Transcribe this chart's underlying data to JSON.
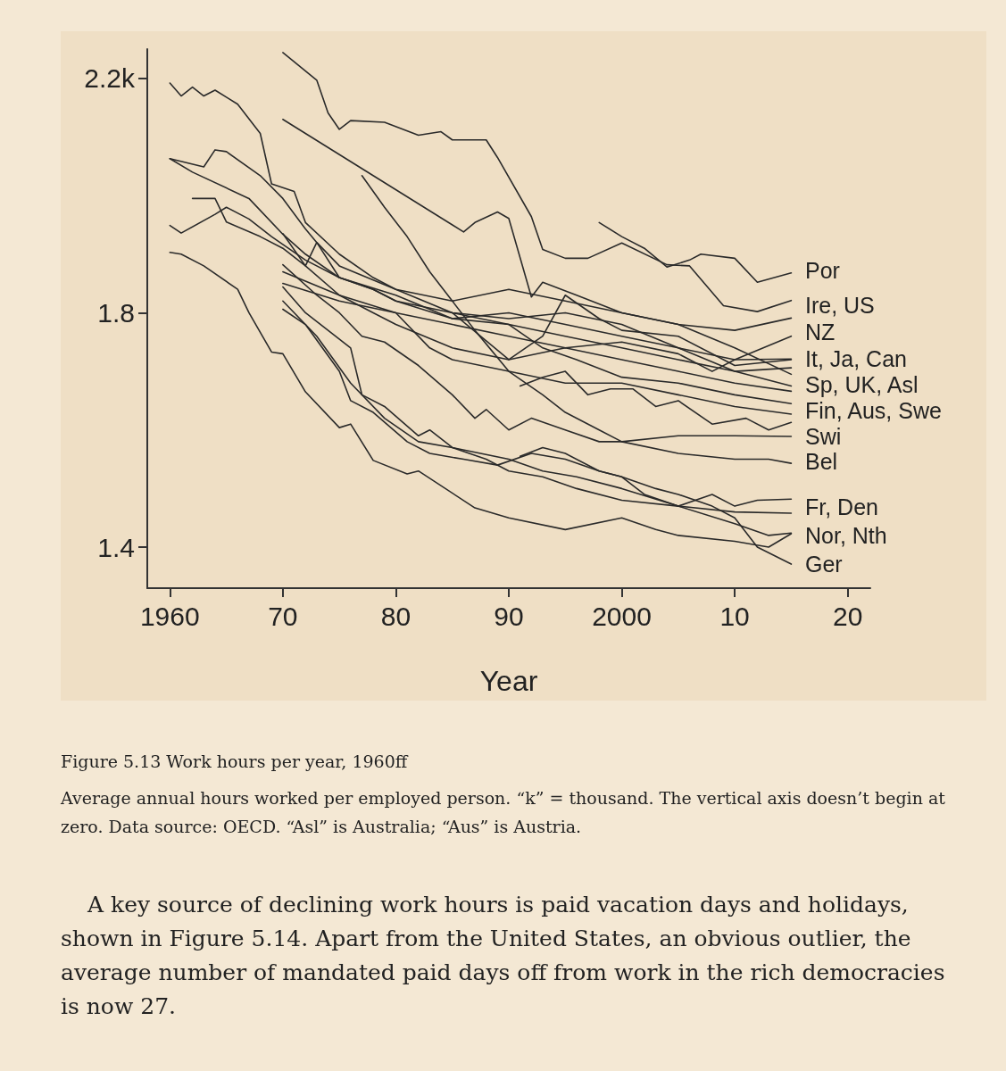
{
  "chart_data": {
    "type": "line",
    "title": "Figure 5.13 Work hours per year, 1960ff",
    "subtitle": "Average annual hours worked per employed person. “k” = thousand. The vertical axis doesn’t begin at zero. Data source: OECD. “Asl” is Australia; “Aus” is Austria.",
    "xlabel": "Year",
    "xlim": [
      1958,
      2022
    ],
    "ylim": [
      1.33,
      2.25
    ],
    "xticks": [
      1960,
      {
        "value": 1970,
        "label": "70"
      },
      {
        "value": 1980,
        "label": "80"
      },
      {
        "value": 1990,
        "label": "90"
      },
      2000,
      {
        "value": 2010,
        "label": "10"
      },
      {
        "value": 2020,
        "label": "20"
      }
    ],
    "yticks": [
      {
        "value": 1.4,
        "label": "1.4"
      },
      {
        "value": 1.8,
        "label": "1.8"
      },
      {
        "value": 2.2,
        "label": "2.2k"
      }
    ],
    "grid": false,
    "marker": "none",
    "line_style": "solid",
    "annotations": [
      "Por",
      "Ire, US",
      "NZ",
      "It, Ja, Can",
      "Sp, UK, Asl",
      "Fin, Aus, Swe",
      "Swi",
      "Bel",
      "Fr, Den",
      "Nor, Nth",
      "Ger",
      "A key source of declining work hours is paid vacation days and holidays, shown in Figure 5.14. Apart from the United States, an obvious outlier, the average number of mandated paid days off from work in the rich democracies is now 27."
    ],
    "series": [
      {
        "color": "#2a2a2a",
        "x": [
          1998,
          2000,
          2002,
          2004,
          2006,
          2007,
          2010,
          2012,
          2015
        ],
        "values": [
          1.954,
          1.93,
          1.91,
          1.878,
          1.89,
          1.9,
          1.893,
          1.852,
          1.868
        ]
      },
      {
        "color": "#2a2a2a",
        "x": [
          1970,
          1973,
          1974,
          1975,
          1976,
          1979,
          1982,
          1984,
          1985,
          1988,
          1989,
          1992,
          1993,
          1995,
          1997,
          2000,
          2004,
          2006,
          2009,
          2012,
          2015
        ],
        "values": [
          2.244,
          2.197,
          2.141,
          2.113,
          2.128,
          2.125,
          2.103,
          2.109,
          2.095,
          2.095,
          2.065,
          1.964,
          1.908,
          1.893,
          1.893,
          1.919,
          1.882,
          1.88,
          1.812,
          1.802,
          1.821
        ]
      },
      {
        "color": "#2a2a2a",
        "x": [
          1970,
          1986,
          1987,
          1989,
          1990,
          1992,
          1993,
          1996,
          2000,
          2005,
          2010,
          2015
        ],
        "values": [
          2.13,
          1.938,
          1.954,
          1.972,
          1.961,
          1.827,
          1.852,
          1.83,
          1.8,
          1.78,
          1.77,
          1.791
        ]
      },
      {
        "color": "#2a2a2a",
        "x": [
          1977,
          1979,
          1981,
          1983,
          1985,
          1987,
          1990,
          1993,
          1995,
          1998,
          2000,
          2005,
          2010,
          2013,
          2015
        ],
        "values": [
          2.034,
          1.98,
          1.93,
          1.87,
          1.82,
          1.77,
          1.7,
          1.66,
          1.63,
          1.6,
          1.58,
          1.56,
          1.55,
          1.55,
          1.543
        ]
      },
      {
        "color": "#2a2a2a",
        "x": [
          1960,
          1961,
          1962,
          1963,
          1964,
          1966,
          1968,
          1969,
          1971,
          1972,
          1975,
          1978,
          1980,
          1985,
          1990,
          1995,
          2000,
          2005,
          2010,
          2015
        ],
        "values": [
          2.192,
          2.17,
          2.185,
          2.17,
          2.18,
          2.156,
          2.106,
          2.02,
          2.007,
          1.954,
          1.9,
          1.86,
          1.84,
          1.8,
          1.78,
          1.76,
          1.74,
          1.72,
          1.7,
          1.706
        ]
      },
      {
        "color": "#2a2a2a",
        "x": [
          1960,
          1963,
          1964,
          1965,
          1968,
          1970,
          1972,
          1973,
          1975,
          1980,
          1985,
          1990,
          1995,
          2000,
          2005,
          2010,
          2015
        ],
        "values": [
          2.063,
          2.049,
          2.078,
          2.075,
          2.034,
          1.995,
          1.943,
          1.92,
          1.88,
          1.84,
          1.82,
          1.84,
          1.82,
          1.8,
          1.78,
          1.74,
          1.695
        ]
      },
      {
        "color": "#2a2a2a",
        "x": [
          1960,
          1962,
          1967,
          1970,
          1972,
          1975,
          1978,
          1980,
          1985,
          1990,
          1995,
          2000,
          2005,
          2010,
          2015
        ],
        "values": [
          2.063,
          2.04,
          1.995,
          1.934,
          1.9,
          1.86,
          1.84,
          1.82,
          1.8,
          1.79,
          1.8,
          1.78,
          1.74,
          1.7,
          1.675
        ]
      },
      {
        "color": "#2a2a2a",
        "x": [
          1962,
          1964,
          1965,
          1968,
          1970,
          1972,
          1975,
          1978,
          1980,
          1985,
          1990,
          1995,
          2000,
          2005,
          2010,
          2015
        ],
        "values": [
          1.995,
          1.995,
          1.955,
          1.93,
          1.91,
          1.88,
          1.83,
          1.8,
          1.78,
          1.74,
          1.72,
          1.74,
          1.72,
          1.7,
          1.68,
          1.666
        ]
      },
      {
        "color": "#2a2a2a",
        "x": [
          1960,
          1961,
          1964,
          1965,
          1967,
          1969,
          1972,
          1975,
          1978,
          1980,
          1985,
          1990,
          1995,
          2000,
          2005,
          2010,
          2015
        ],
        "values": [
          1.949,
          1.936,
          1.968,
          1.98,
          1.96,
          1.93,
          1.89,
          1.86,
          1.84,
          1.82,
          1.79,
          1.8,
          1.78,
          1.76,
          1.74,
          1.72,
          1.721
        ]
      },
      {
        "color": "#2a2a2a",
        "x": [
          1960,
          1961,
          1963,
          1966,
          1967,
          1969,
          1970,
          1972,
          1975,
          1976,
          1978,
          1981,
          1982,
          1987,
          1990,
          1995,
          2000,
          2003,
          2005,
          2010,
          2013,
          2015
        ],
        "values": [
          1.903,
          1.9,
          1.88,
          1.84,
          1.8,
          1.733,
          1.73,
          1.665,
          1.604,
          1.61,
          1.548,
          1.525,
          1.53,
          1.467,
          1.45,
          1.43,
          1.45,
          1.43,
          1.42,
          1.41,
          1.4,
          1.423
        ]
      },
      {
        "color": "#2a2a2a",
        "x": [
          1970,
          1972,
          1973,
          1975,
          1980,
          1985,
          1990,
          1993,
          1996,
          2000,
          2005,
          2010,
          2015
        ],
        "values": [
          1.935,
          1.88,
          1.92,
          1.86,
          1.83,
          1.79,
          1.78,
          1.74,
          1.72,
          1.69,
          1.68,
          1.66,
          1.645
        ]
      },
      {
        "color": "#2a2a2a",
        "x": [
          1970,
          1973,
          1975,
          1977,
          1979,
          1982,
          1985,
          1987,
          1988,
          1990,
          1992,
          1995,
          1998,
          2000,
          2005,
          2010,
          2015
        ],
        "values": [
          1.882,
          1.83,
          1.8,
          1.76,
          1.75,
          1.71,
          1.66,
          1.62,
          1.635,
          1.6,
          1.62,
          1.6,
          1.58,
          1.58,
          1.59,
          1.59,
          1.589
        ]
      },
      {
        "color": "#2a2a2a",
        "x": [
          1970,
          1972,
          1976,
          1977,
          1979,
          1982,
          1983,
          1985,
          1990,
          1993,
          1996,
          2000,
          2005,
          2010,
          2013,
          2015
        ],
        "values": [
          1.844,
          1.8,
          1.74,
          1.66,
          1.64,
          1.59,
          1.6,
          1.57,
          1.55,
          1.53,
          1.52,
          1.5,
          1.47,
          1.44,
          1.42,
          1.424
        ]
      },
      {
        "color": "#2a2a2a",
        "x": [
          1970,
          1972,
          1975,
          1976,
          1978,
          1981,
          1983,
          1986,
          1989,
          1992,
          1995,
          1998,
          2000,
          2003,
          2005,
          2008,
          2010,
          2012,
          2015
        ],
        "values": [
          1.806,
          1.78,
          1.7,
          1.65,
          1.63,
          1.58,
          1.56,
          1.55,
          1.54,
          1.56,
          1.55,
          1.53,
          1.52,
          1.5,
          1.49,
          1.47,
          1.45,
          1.4,
          1.371
        ]
      },
      {
        "color": "#2a2a2a",
        "x": [
          1970,
          1973,
          1976,
          1979,
          1982,
          1985,
          1988,
          1990,
          1993,
          1996,
          2000,
          2005,
          2010,
          2015
        ],
        "values": [
          1.82,
          1.76,
          1.68,
          1.62,
          1.58,
          1.57,
          1.55,
          1.53,
          1.52,
          1.5,
          1.48,
          1.47,
          1.46,
          1.458
        ]
      },
      {
        "color": "#2a2a2a",
        "x": [
          1991,
          1993,
          1995,
          1997,
          1999,
          2001,
          2003,
          2005,
          2008,
          2011,
          2013,
          2015
        ],
        "values": [
          1.675,
          1.69,
          1.7,
          1.66,
          1.67,
          1.67,
          1.64,
          1.65,
          1.61,
          1.62,
          1.6,
          1.613
        ]
      },
      {
        "color": "#2a2a2a",
        "x": [
          1991,
          1993,
          1995,
          1998,
          2000,
          2002,
          2005,
          2008,
          2010,
          2012,
          2015
        ],
        "values": [
          1.555,
          1.57,
          1.56,
          1.53,
          1.52,
          1.49,
          1.47,
          1.49,
          1.47,
          1.48,
          1.482
        ]
      },
      {
        "color": "#2a2a2a",
        "x": [
          1970,
          1975,
          1980,
          1983,
          1985,
          1990,
          1995,
          2000,
          2005,
          2010,
          2015
        ],
        "values": [
          1.87,
          1.83,
          1.8,
          1.74,
          1.72,
          1.7,
          1.68,
          1.68,
          1.66,
          1.64,
          1.627
        ]
      },
      {
        "color": "#2a2a2a",
        "x": [
          1970,
          1975,
          1980,
          1985,
          1990,
          1995,
          2000,
          2005,
          2008,
          2010,
          2015
        ],
        "values": [
          1.85,
          1.82,
          1.8,
          1.78,
          1.76,
          1.74,
          1.75,
          1.73,
          1.7,
          1.72,
          1.76
        ]
      },
      {
        "color": "#2a2a2a",
        "x": [
          1985,
          1990,
          1993,
          1995,
          1998,
          2000,
          2005,
          2010,
          2015
        ],
        "values": [
          1.8,
          1.72,
          1.76,
          1.83,
          1.79,
          1.77,
          1.76,
          1.71,
          1.72
        ]
      }
    ]
  }
}
